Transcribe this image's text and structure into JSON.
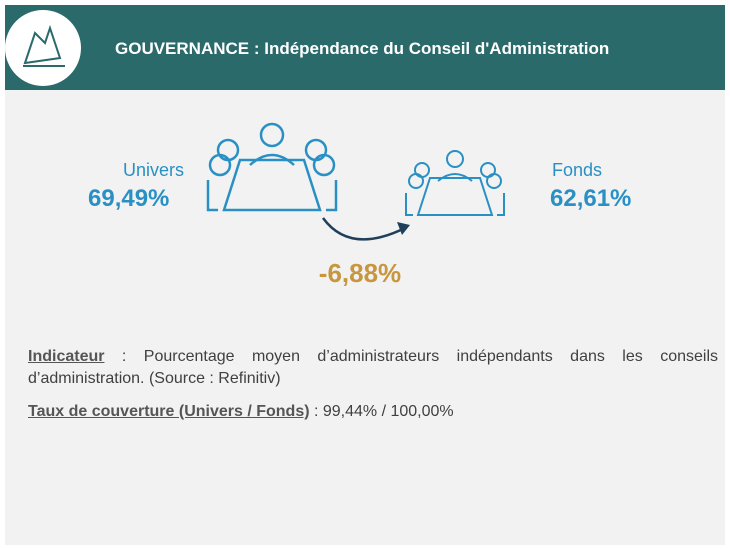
{
  "header": {
    "title": "GOUVERNANCE : Indépendance du Conseil d'Administration"
  },
  "univers": {
    "label": "Univers",
    "value": "69,49%"
  },
  "fonds": {
    "label": "Fonds",
    "value": "62,61%"
  },
  "change": "-6,88%",
  "indicator": {
    "label": "Indicateur",
    "text": " : Pourcentage moyen d’administrateurs indépendants dans les conseils d’administration. (Source : Refinitiv)"
  },
  "coverage": {
    "label": "Taux de couverture (Univers / Fonds)",
    "text": " : 99,44% / 100,00%"
  }
}
